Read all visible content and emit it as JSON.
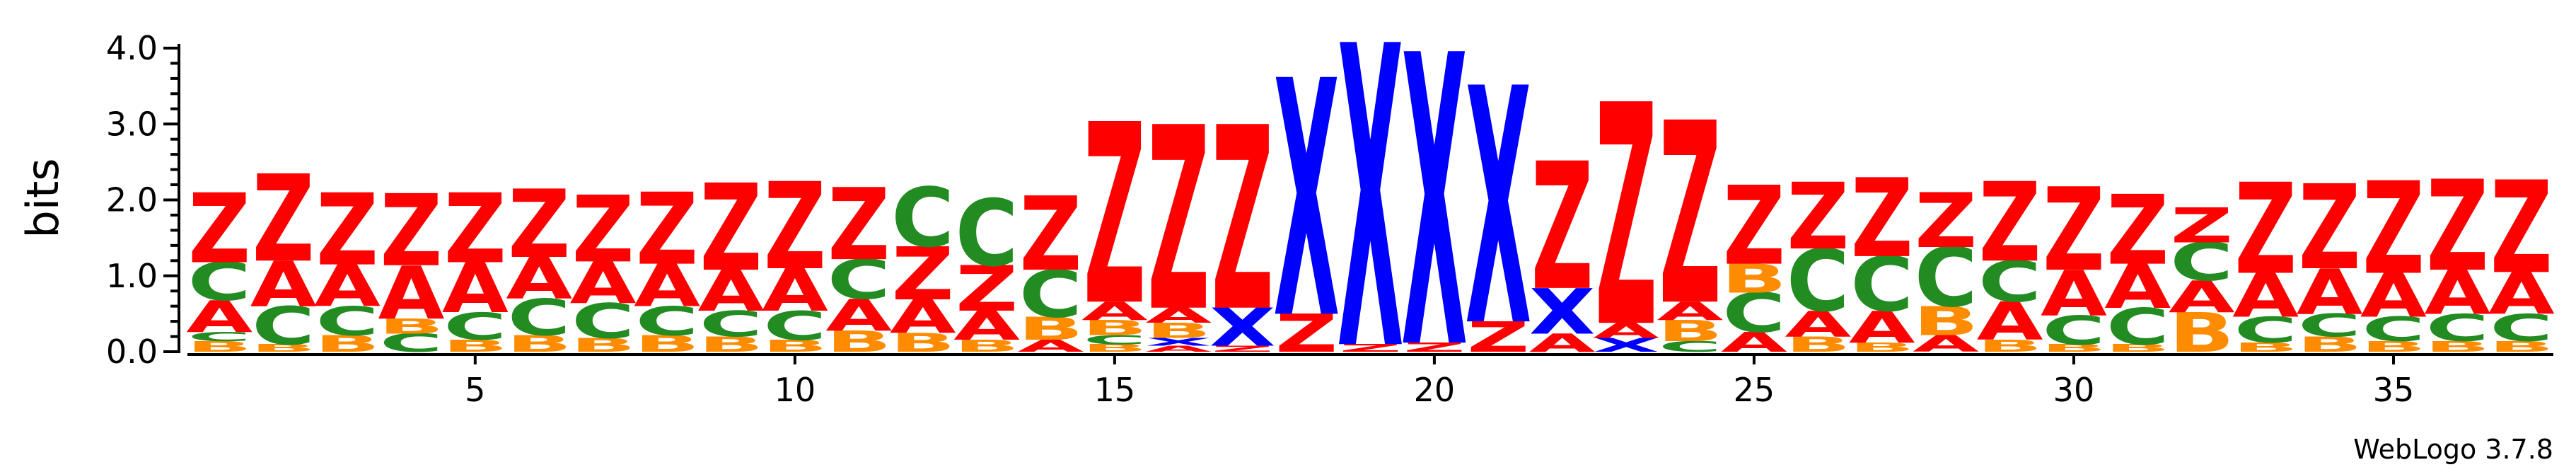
{
  "chart_data": {
    "type": "sequence_logo",
    "ylabel": "bits",
    "ylim": [
      0,
      4.0
    ],
    "y_ticks": [
      "0.0",
      "1.0",
      "2.0",
      "3.0",
      "4.0"
    ],
    "x_ticks": [
      "5",
      "10",
      "15",
      "20",
      "25",
      "30",
      "35"
    ],
    "x_tick_positions": [
      5,
      10,
      15,
      20,
      25,
      30,
      35
    ],
    "credit": "WebLogo 3.7.8",
    "colors": {
      "Z": "#ff0000",
      "A": "#ff0000",
      "C": "#228b22",
      "B": "#ff8c00",
      "X": "#0000ff"
    },
    "positions": [
      {
        "pos": 1,
        "stack": [
          [
            "B",
            0.14
          ],
          [
            "C",
            0.12
          ],
          [
            "A",
            0.42
          ],
          [
            "C",
            0.5
          ],
          [
            "Z",
            0.92
          ]
        ]
      },
      {
        "pos": 2,
        "stack": [
          [
            "B",
            0.1
          ],
          [
            "C",
            0.5
          ],
          [
            "A",
            0.6
          ],
          [
            "Z",
            1.15
          ]
        ]
      },
      {
        "pos": 3,
        "stack": [
          [
            "B",
            0.22
          ],
          [
            "C",
            0.38
          ],
          [
            "A",
            0.55
          ],
          [
            "Z",
            0.95
          ]
        ]
      },
      {
        "pos": 4,
        "stack": [
          [
            "C",
            0.24
          ],
          [
            "B",
            0.2
          ],
          [
            "A",
            0.7
          ],
          [
            "Z",
            0.95
          ]
        ]
      },
      {
        "pos": 5,
        "stack": [
          [
            "B",
            0.16
          ],
          [
            "C",
            0.36
          ],
          [
            "A",
            0.66
          ],
          [
            "Z",
            0.92
          ]
        ]
      },
      {
        "pos": 6,
        "stack": [
          [
            "B",
            0.22
          ],
          [
            "C",
            0.48
          ],
          [
            "A",
            0.55
          ],
          [
            "Z",
            0.9
          ]
        ]
      },
      {
        "pos": 7,
        "stack": [
          [
            "B",
            0.18
          ],
          [
            "C",
            0.46
          ],
          [
            "A",
            0.55
          ],
          [
            "Z",
            0.88
          ]
        ]
      },
      {
        "pos": 8,
        "stack": [
          [
            "B",
            0.22
          ],
          [
            "C",
            0.38
          ],
          [
            "A",
            0.56
          ],
          [
            "Z",
            0.95
          ]
        ]
      },
      {
        "pos": 9,
        "stack": [
          [
            "B",
            0.2
          ],
          [
            "C",
            0.34
          ],
          [
            "A",
            0.54
          ],
          [
            "Z",
            1.15
          ]
        ]
      },
      {
        "pos": 10,
        "stack": [
          [
            "B",
            0.16
          ],
          [
            "C",
            0.38
          ],
          [
            "A",
            0.56
          ],
          [
            "Z",
            1.15
          ]
        ]
      },
      {
        "pos": 11,
        "stack": [
          [
            "B",
            0.28
          ],
          [
            "A",
            0.42
          ],
          [
            "C",
            0.52
          ],
          [
            "Z",
            0.95
          ]
        ]
      },
      {
        "pos": 12,
        "stack": [
          [
            "B",
            0.25
          ],
          [
            "A",
            0.44
          ],
          [
            "Z",
            0.7
          ],
          [
            "C",
            0.78
          ]
        ]
      },
      {
        "pos": 13,
        "stack": [
          [
            "B",
            0.16
          ],
          [
            "A",
            0.38
          ],
          [
            "Z",
            0.6
          ],
          [
            "C",
            0.88
          ]
        ]
      },
      {
        "pos": 14,
        "stack": [
          [
            "A",
            0.16
          ],
          [
            "B",
            0.3
          ],
          [
            "C",
            0.62
          ],
          [
            "Z",
            0.98
          ]
        ]
      },
      {
        "pos": 15,
        "stack": [
          [
            "B",
            0.1
          ],
          [
            "C",
            0.12
          ],
          [
            "B",
            0.2
          ],
          [
            "A",
            0.24
          ],
          [
            "Z",
            2.38
          ]
        ]
      },
      {
        "pos": 16,
        "stack": [
          [
            "A",
            0.08
          ],
          [
            "X",
            0.1
          ],
          [
            "B",
            0.2
          ],
          [
            "A",
            0.2
          ],
          [
            "Z",
            2.42
          ]
        ]
      },
      {
        "pos": 17,
        "stack": [
          [
            "Z",
            0.08
          ],
          [
            "X",
            0.5
          ],
          [
            "Z",
            2.42
          ]
        ]
      },
      {
        "pos": 18,
        "stack": [
          [
            "Z",
            0.5
          ],
          [
            "X",
            3.12
          ]
        ]
      },
      {
        "pos": 19,
        "stack": [
          [
            "Z",
            0.1
          ],
          [
            "X",
            3.98
          ]
        ]
      },
      {
        "pos": 20,
        "stack": [
          [
            "Z",
            0.12
          ],
          [
            "X",
            3.84
          ]
        ]
      },
      {
        "pos": 21,
        "stack": [
          [
            "Z",
            0.4
          ],
          [
            "X",
            3.12
          ]
        ]
      },
      {
        "pos": 22,
        "stack": [
          [
            "A",
            0.24
          ],
          [
            "X",
            0.6
          ],
          [
            "Z",
            1.68
          ]
        ]
      },
      {
        "pos": 23,
        "stack": [
          [
            "X",
            0.18
          ],
          [
            "A",
            0.2
          ],
          [
            "Z",
            2.92
          ]
        ]
      },
      {
        "pos": 24,
        "stack": [
          [
            "C",
            0.14
          ],
          [
            "B",
            0.28
          ],
          [
            "A",
            0.24
          ],
          [
            "Z",
            2.4
          ]
        ]
      },
      {
        "pos": 25,
        "stack": [
          [
            "A",
            0.26
          ],
          [
            "C",
            0.52
          ],
          [
            "B",
            0.38
          ],
          [
            "Z",
            1.04
          ]
        ]
      },
      {
        "pos": 26,
        "stack": [
          [
            "B",
            0.2
          ],
          [
            "A",
            0.34
          ],
          [
            "C",
            0.82
          ],
          [
            "Z",
            0.88
          ]
        ]
      },
      {
        "pos": 27,
        "stack": [
          [
            "B",
            0.12
          ],
          [
            "A",
            0.42
          ],
          [
            "C",
            0.72
          ],
          [
            "Z",
            1.04
          ]
        ]
      },
      {
        "pos": 28,
        "stack": [
          [
            "A",
            0.22
          ],
          [
            "B",
            0.38
          ],
          [
            "C",
            0.78
          ],
          [
            "Z",
            0.72
          ]
        ]
      },
      {
        "pos": 29,
        "stack": [
          [
            "B",
            0.16
          ],
          [
            "A",
            0.5
          ],
          [
            "C",
            0.54
          ],
          [
            "Z",
            1.05
          ]
        ]
      },
      {
        "pos": 30,
        "stack": [
          [
            "B",
            0.1
          ],
          [
            "C",
            0.38
          ],
          [
            "A",
            0.6
          ],
          [
            "Z",
            1.1
          ]
        ]
      },
      {
        "pos": 31,
        "stack": [
          [
            "B",
            0.1
          ],
          [
            "C",
            0.48
          ],
          [
            "A",
            0.58
          ],
          [
            "Z",
            0.92
          ]
        ]
      },
      {
        "pos": 32,
        "stack": [
          [
            "B",
            0.52
          ],
          [
            "A",
            0.42
          ],
          [
            "C",
            0.5
          ],
          [
            "Z",
            0.46
          ]
        ]
      },
      {
        "pos": 33,
        "stack": [
          [
            "B",
            0.12
          ],
          [
            "C",
            0.34
          ],
          [
            "A",
            0.58
          ],
          [
            "Z",
            1.2
          ]
        ]
      },
      {
        "pos": 34,
        "stack": [
          [
            "B",
            0.2
          ],
          [
            "C",
            0.3
          ],
          [
            "A",
            0.6
          ],
          [
            "Z",
            1.12
          ]
        ]
      },
      {
        "pos": 35,
        "stack": [
          [
            "B",
            0.14
          ],
          [
            "C",
            0.32
          ],
          [
            "A",
            0.58
          ],
          [
            "Z",
            1.22
          ]
        ]
      },
      {
        "pos": 36,
        "stack": [
          [
            "B",
            0.14
          ],
          [
            "C",
            0.36
          ],
          [
            "A",
            0.58
          ],
          [
            "Z",
            1.2
          ]
        ]
      },
      {
        "pos": 37,
        "stack": [
          [
            "B",
            0.14
          ],
          [
            "C",
            0.36
          ],
          [
            "A",
            0.55
          ],
          [
            "Z",
            1.22
          ]
        ]
      }
    ]
  }
}
